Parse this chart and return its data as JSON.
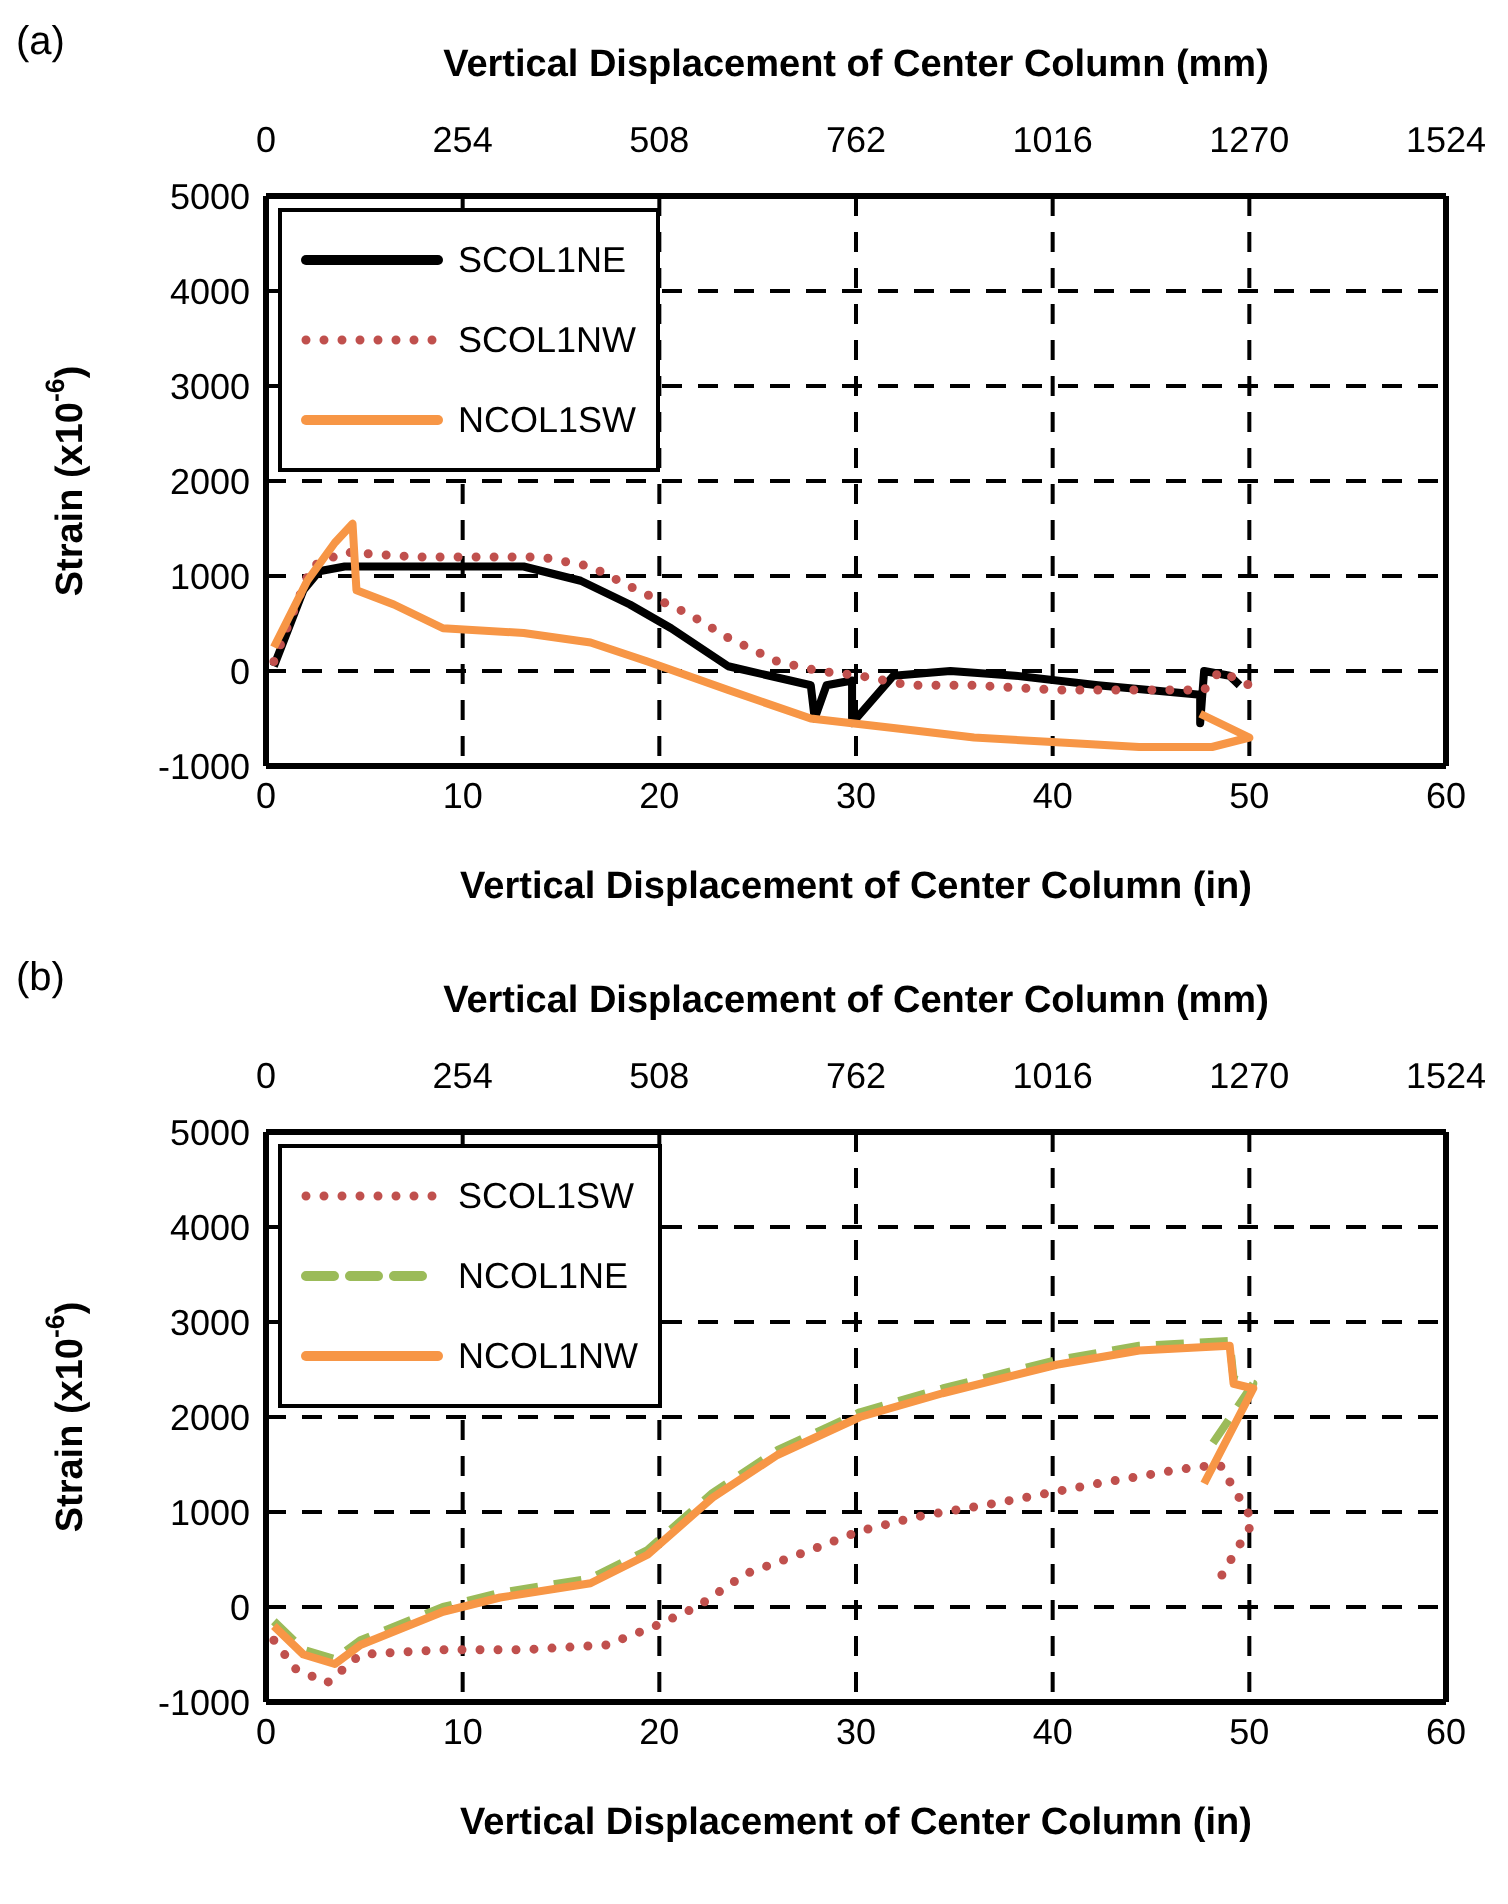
{
  "chart_data": [
    {
      "type": "line",
      "annotations": [
        "(a)"
      ],
      "x2label": "Vertical Displacement of Center Column (mm)",
      "xlabel": "Vertical Displacement of Center Column (in)",
      "ylabel": "Strain (x10$^{-6}$)",
      "xlim": [
        0,
        60
      ],
      "xticks": [
        0,
        10,
        20,
        30,
        40,
        50,
        60
      ],
      "x2lim": [
        0,
        1524
      ],
      "x2ticks": [
        0,
        254,
        508,
        762,
        1016,
        1270,
        1524
      ],
      "ylim": [
        -1000,
        5000
      ],
      "yticks": [
        -1000,
        0,
        1000,
        2000,
        3000,
        4000,
        5000
      ],
      "grid": true,
      "legend": "top left",
      "series": [
        {
          "name": "SCOL1NE",
          "color": "#000000",
          "line_style": "solid",
          "x": [
            0.4,
            1.9,
            2.7,
            4.0,
            6.9,
            11,
            13.1,
            16,
            18.5,
            20.6,
            23.5,
            25.6,
            27.7,
            27.9,
            28.5,
            29.8,
            29.8,
            31.9,
            34.8,
            38.1,
            42.3,
            47.5,
            47.5,
            47.7,
            49,
            49.5
          ],
          "values": [
            50,
            850,
            1050,
            1100,
            1100,
            1100,
            1100,
            950,
            700,
            450,
            50,
            -50,
            -150,
            -500,
            -150,
            -100,
            -550,
            -50,
            0,
            -50,
            -150,
            -250,
            -550,
            0,
            -50,
            -150
          ]
        },
        {
          "name": "SCOL1NW",
          "color": "#c0504d",
          "line_style": "dotted",
          "x": [
            0.4,
            2.3,
            4,
            7.7,
            11,
            14,
            16.5,
            18.9,
            21.5,
            23.5,
            26,
            28.1,
            30.2,
            32.7,
            36,
            40.2,
            44.4,
            47.7,
            48.5,
            50
          ],
          "values": [
            100,
            1100,
            1250,
            1200,
            1200,
            1200,
            1100,
            850,
            600,
            350,
            100,
            0,
            -50,
            -150,
            -150,
            -200,
            -200,
            -200,
            0,
            -150
          ]
        },
        {
          "name": "NCOL1SW",
          "color": "#f79646",
          "line_style": "solid",
          "x": [
            0.4,
            2.1,
            3.5,
            4.4,
            4.6,
            6.5,
            9,
            13.1,
            16.5,
            19.4,
            23.5,
            27.7,
            31.9,
            36,
            40.2,
            44.4,
            48.1,
            50,
            47.5
          ],
          "values": [
            250,
            950,
            1350,
            1550,
            850,
            700,
            450,
            400,
            300,
            100,
            -200,
            -500,
            -600,
            -700,
            -750,
            -800,
            -800,
            -700,
            -450
          ]
        }
      ]
    },
    {
      "type": "line",
      "annotations": [
        "(b)"
      ],
      "x2label": "Vertical Displacement of Center Column (mm)",
      "xlabel": "Vertical Displacement of Center Column (in)",
      "ylabel": "Strain (x10$^{-6}$)",
      "xlim": [
        0,
        60
      ],
      "xticks": [
        0,
        10,
        20,
        30,
        40,
        50,
        60
      ],
      "x2lim": [
        0,
        1524
      ],
      "x2ticks": [
        0,
        254,
        508,
        762,
        1016,
        1270,
        1524
      ],
      "ylim": [
        -1000,
        5000
      ],
      "yticks": [
        -1000,
        0,
        1000,
        2000,
        3000,
        4000,
        5000
      ],
      "grid": true,
      "legend": "top left",
      "series": [
        {
          "name": "SCOL1SW",
          "color": "#c0504d",
          "line_style": "dotted",
          "x": [
            0.4,
            1.5,
            3.1,
            4.8,
            9,
            13.1,
            17.3,
            19.8,
            21.9,
            24.4,
            27.7,
            30.2,
            33.1,
            37.3,
            42.3,
            46.5,
            48.5,
            49.2,
            50.2,
            48.5
          ],
          "values": [
            -350,
            -650,
            -800,
            -500,
            -450,
            -450,
            -400,
            -200,
            0,
            350,
            600,
            800,
            950,
            1100,
            1300,
            1450,
            1500,
            1250,
            900,
            300
          ]
        },
        {
          "name": "NCOL1NE",
          "color": "#9bbb59",
          "line_style": "dashed",
          "x": [
            0.4,
            1.9,
            3.5,
            4.8,
            9,
            11.9,
            16.5,
            19.4,
            22.7,
            26,
            30.2,
            34.4,
            40.2,
            44.4,
            49,
            49.2,
            50.2,
            47.9
          ],
          "values": [
            -150,
            -450,
            -550,
            -350,
            0,
            150,
            300,
            600,
            1200,
            1650,
            2050,
            2300,
            2600,
            2750,
            2800,
            2400,
            2350,
            1650
          ]
        },
        {
          "name": "NCOL1NW",
          "color": "#f79646",
          "line_style": "solid",
          "x": [
            0.4,
            1.9,
            3.5,
            4.8,
            9,
            11.9,
            16.5,
            19.4,
            22.7,
            26,
            30.2,
            34.4,
            40.2,
            44.4,
            49,
            49.2,
            50.2,
            47.7
          ],
          "values": [
            -200,
            -500,
            -600,
            -400,
            -50,
            100,
            250,
            550,
            1150,
            1600,
            2000,
            2250,
            2550,
            2700,
            2750,
            2350,
            2300,
            1300
          ]
        }
      ]
    }
  ]
}
